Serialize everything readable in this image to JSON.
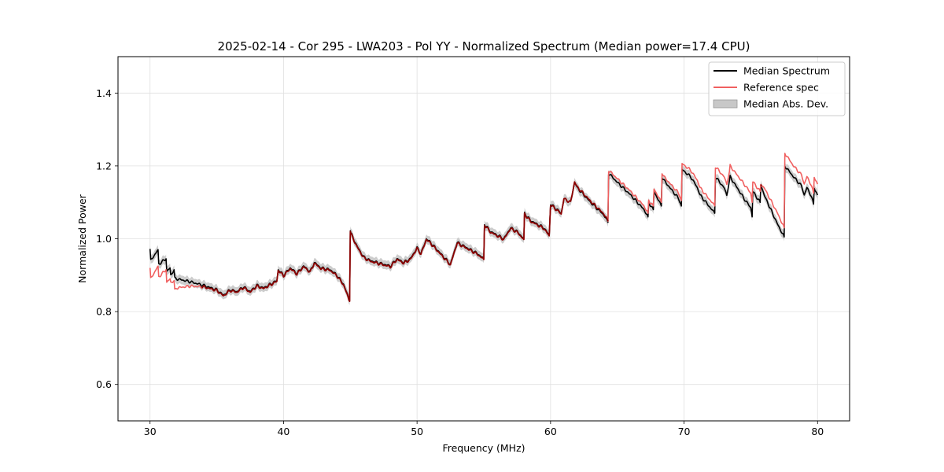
{
  "chart_data": {
    "type": "line",
    "title": "2025-02-14 - Cor 295 - LWA203 - Pol YY - Normalized Spectrum (Median power=17.4 CPU)",
    "xlabel": "Frequency (MHz)",
    "ylabel": "Normalized Power",
    "xlim": [
      27.6,
      82.4
    ],
    "ylim": [
      0.5,
      1.5
    ],
    "xticks": [
      30,
      40,
      50,
      60,
      70,
      80
    ],
    "yticks": [
      0.6,
      0.8,
      1.0,
      1.2,
      1.4
    ],
    "xtick_labels": [
      "30",
      "40",
      "50",
      "60",
      "70",
      "80"
    ],
    "ytick_labels": [
      "0.6",
      "0.8",
      "1.0",
      "1.2",
      "1.4"
    ],
    "grid": true,
    "legend_position": "top-right",
    "colors": {
      "median": "#000000",
      "reference": "#f06060",
      "band": "#c8c8c8",
      "overlap": "#8b0000"
    },
    "legend": [
      {
        "label": "Median Spectrum",
        "kind": "line",
        "color": "#000000"
      },
      {
        "label": "Reference spec",
        "kind": "line",
        "color": "#f06060"
      },
      {
        "label": "Median Abs. Dev.",
        "kind": "patch",
        "color": "#c8c8c8"
      }
    ],
    "mad_width": 0.012,
    "series": [
      {
        "name": "Median Spectrum",
        "x": [
          30.0,
          30.05,
          30.6,
          30.65,
          31.2,
          31.25,
          31.5,
          31.55,
          31.8,
          31.85,
          32.0,
          33.0,
          34.0,
          35.0,
          35.5,
          36.0,
          36.5,
          37.0,
          37.5,
          38.0,
          38.5,
          39.0,
          39.5,
          39.6,
          40.0,
          40.5,
          41.0,
          41.5,
          42.0,
          42.3,
          42.8,
          43.5,
          44.0,
          44.5,
          44.95,
          45.0,
          45.05,
          45.5,
          46.0,
          46.5,
          47.0,
          47.5,
          48.0,
          48.5,
          49.0,
          49.5,
          50.0,
          50.3,
          50.7,
          51.0,
          51.5,
          52.0,
          52.5,
          53.0,
          53.5,
          54.0,
          54.5,
          55.0,
          55.05,
          55.5,
          56.0,
          56.5,
          57.0,
          57.5,
          58.0,
          58.05,
          58.5,
          59.0,
          59.5,
          59.9,
          60.0,
          60.5,
          60.8,
          61.0,
          61.5,
          61.8,
          62.0,
          63.0,
          64.0,
          64.3,
          64.35,
          65.0,
          66.0,
          67.0,
          67.3,
          67.35,
          67.7,
          67.75,
          68.3,
          68.35,
          68.5,
          69.6,
          69.8,
          69.85,
          70.5,
          71.0,
          71.2,
          72.3,
          72.35,
          73.0,
          73.2,
          73.4,
          73.45,
          74.5,
          75.0,
          75.1,
          75.15,
          75.7,
          75.75,
          76.0,
          76.5,
          77.0,
          77.5,
          77.55,
          78.2,
          78.8,
          79.0,
          79.2,
          79.5,
          79.7,
          79.75,
          80.0
        ],
        "y": [
          0.972,
          0.94,
          0.97,
          0.93,
          0.945,
          0.91,
          0.92,
          0.9,
          0.915,
          0.895,
          0.89,
          0.882,
          0.872,
          0.86,
          0.845,
          0.86,
          0.855,
          0.868,
          0.855,
          0.872,
          0.865,
          0.875,
          0.885,
          0.915,
          0.9,
          0.92,
          0.905,
          0.925,
          0.91,
          0.935,
          0.92,
          0.915,
          0.9,
          0.875,
          0.83,
          1.022,
          1.015,
          0.98,
          0.95,
          0.94,
          0.935,
          0.93,
          0.925,
          0.945,
          0.935,
          0.945,
          0.975,
          0.96,
          1.0,
          0.99,
          0.97,
          0.95,
          0.93,
          0.99,
          0.98,
          0.97,
          0.96,
          0.945,
          1.04,
          1.02,
          1.01,
          1.0,
          1.03,
          1.02,
          1.0,
          1.07,
          1.05,
          1.04,
          1.03,
          1.01,
          1.095,
          1.08,
          1.07,
          1.11,
          1.1,
          1.155,
          1.14,
          1.1,
          1.065,
          1.045,
          1.18,
          1.155,
          1.12,
          1.08,
          1.06,
          1.1,
          1.08,
          1.13,
          1.09,
          1.17,
          1.16,
          1.11,
          1.09,
          1.19,
          1.17,
          1.14,
          1.12,
          1.07,
          1.17,
          1.14,
          1.12,
          1.16,
          1.17,
          1.11,
          1.085,
          1.06,
          1.13,
          1.1,
          1.15,
          1.12,
          1.08,
          1.04,
          1.005,
          1.2,
          1.17,
          1.145,
          1.12,
          1.14,
          1.12,
          1.095,
          1.14,
          1.12
        ]
      },
      {
        "name": "Reference spec",
        "x": [
          30.0,
          30.05,
          30.6,
          30.65,
          31.2,
          31.25,
          31.5,
          31.55,
          31.8,
          31.85,
          32.0,
          33.0,
          34.0,
          35.0,
          35.5,
          36.0,
          36.5,
          37.0,
          37.5,
          38.0,
          38.5,
          39.0,
          39.5,
          39.6,
          40.0,
          40.5,
          41.0,
          41.5,
          42.0,
          42.3,
          42.8,
          43.5,
          44.0,
          44.5,
          44.95,
          45.0,
          45.05,
          45.5,
          46.0,
          46.5,
          47.0,
          47.5,
          48.0,
          48.5,
          49.0,
          49.5,
          50.0,
          50.3,
          50.7,
          51.0,
          51.5,
          52.0,
          52.5,
          53.0,
          53.5,
          54.0,
          54.5,
          55.0,
          55.05,
          55.5,
          56.0,
          56.5,
          57.0,
          57.5,
          58.0,
          58.05,
          58.5,
          59.0,
          59.5,
          59.9,
          60.0,
          60.5,
          60.8,
          61.0,
          61.5,
          61.8,
          62.0,
          63.0,
          64.0,
          64.3,
          64.35,
          65.0,
          66.0,
          67.0,
          67.3,
          67.35,
          67.7,
          67.75,
          68.3,
          68.35,
          68.5,
          69.6,
          69.8,
          69.85,
          70.5,
          71.0,
          71.2,
          72.3,
          72.35,
          73.0,
          73.2,
          73.4,
          73.45,
          74.5,
          75.0,
          75.1,
          75.15,
          75.7,
          75.75,
          76.0,
          76.5,
          77.0,
          77.5,
          77.55,
          78.2,
          78.8,
          79.0,
          79.2,
          79.5,
          79.7,
          79.75,
          80.0
        ],
        "y": [
          0.92,
          0.89,
          0.925,
          0.895,
          0.915,
          0.88,
          0.89,
          0.88,
          0.885,
          0.862,
          0.865,
          0.87,
          0.868,
          0.858,
          0.843,
          0.858,
          0.853,
          0.866,
          0.853,
          0.87,
          0.863,
          0.873,
          0.883,
          0.913,
          0.898,
          0.918,
          0.903,
          0.923,
          0.908,
          0.933,
          0.918,
          0.913,
          0.898,
          0.873,
          0.828,
          1.02,
          1.013,
          0.978,
          0.948,
          0.938,
          0.933,
          0.928,
          0.923,
          0.943,
          0.933,
          0.943,
          0.973,
          0.958,
          0.998,
          0.988,
          0.968,
          0.948,
          0.928,
          0.988,
          0.978,
          0.968,
          0.958,
          0.943,
          1.038,
          1.018,
          1.008,
          0.998,
          1.028,
          1.018,
          0.998,
          1.068,
          1.048,
          1.038,
          1.028,
          1.008,
          1.093,
          1.078,
          1.068,
          1.11,
          1.1,
          1.156,
          1.142,
          1.103,
          1.068,
          1.048,
          1.188,
          1.165,
          1.13,
          1.09,
          1.07,
          1.105,
          1.09,
          1.137,
          1.1,
          1.182,
          1.17,
          1.125,
          1.105,
          1.206,
          1.188,
          1.16,
          1.14,
          1.09,
          1.198,
          1.17,
          1.15,
          1.185,
          1.2,
          1.15,
          1.125,
          1.1,
          1.157,
          1.13,
          1.15,
          1.14,
          1.105,
          1.07,
          1.03,
          1.235,
          1.2,
          1.175,
          1.15,
          1.17,
          1.15,
          1.125,
          1.17,
          1.15
        ]
      }
    ]
  }
}
